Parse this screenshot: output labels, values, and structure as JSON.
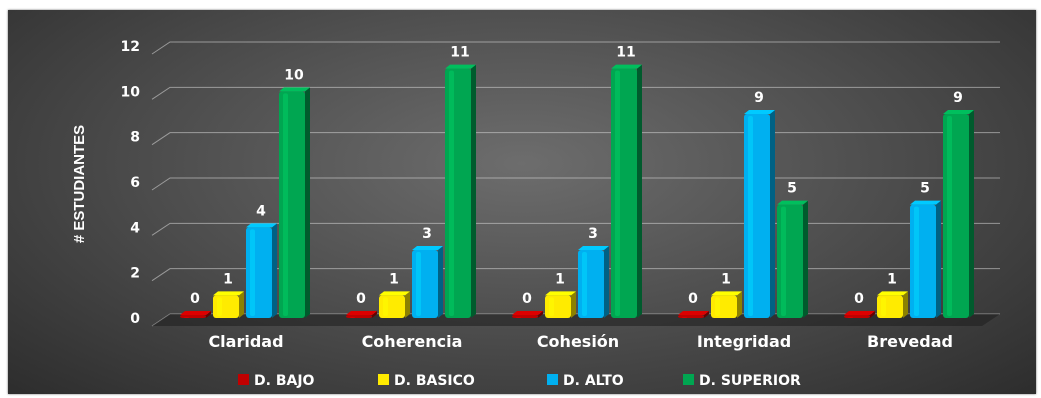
{
  "chart_data": {
    "type": "bar",
    "title": "",
    "xlabel": "",
    "ylabel": "# ESTUDIANTES",
    "ylim": [
      0,
      12
    ],
    "yticks": [
      "0",
      "2",
      "4",
      "6",
      "8",
      "10",
      "12"
    ],
    "categories": [
      "Claridad",
      "Coherencia",
      "Cohesión",
      "Integridad",
      "Brevedad"
    ],
    "series": [
      {
        "name": "D. BAJO",
        "color": "#c00000",
        "values": [
          0,
          0,
          0,
          0,
          0
        ]
      },
      {
        "name": "D. BASICO",
        "color": "#ffeb00",
        "values": [
          1,
          1,
          1,
          1,
          1
        ]
      },
      {
        "name": "D. ALTO",
        "color": "#00b0f0",
        "values": [
          4,
          3,
          3,
          9,
          5
        ]
      },
      {
        "name": "D. SUPERIOR",
        "color": "#00a651",
        "values": [
          10,
          11,
          11,
          5,
          9
        ]
      }
    ],
    "grid": true,
    "legend_position": "bottom",
    "data_labels": true
  }
}
